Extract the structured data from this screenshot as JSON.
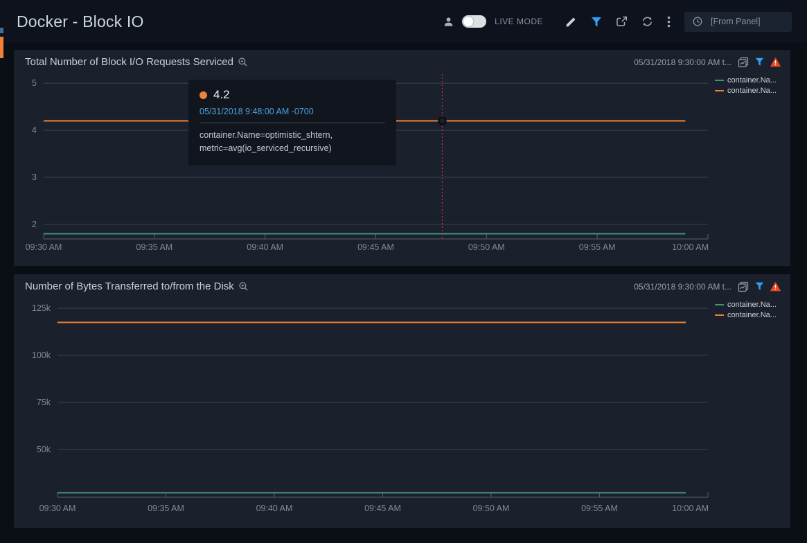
{
  "app": {
    "title": "Docker - Block IO"
  },
  "toolbar": {
    "live_mode_label": "LIVE MODE",
    "live_mode_on": false,
    "time_range_value": "[From Panel]",
    "icons": [
      "user-icon",
      "live-mode-toggle",
      "edit-pencil-icon",
      "filter-funnel-icon",
      "share-icon",
      "refresh-icon",
      "kebab-menu-icon",
      "clock-icon"
    ],
    "filter_icon_color": "#2fa1f6"
  },
  "panels": [
    {
      "title": "Total Number of Block I/O Requests Serviced",
      "time_label": "05/31/2018 9:30:00 AM t...",
      "header_icons": [
        "zoom-in-icon",
        "copy-panel-icon",
        "panel-filter-icon",
        "panel-warning-icon"
      ],
      "warning_color": "#e8491f",
      "tooltip": {
        "value": "4.2",
        "timestamp": "05/31/2018 9:48:00 AM -0700",
        "details": [
          "container.Name=optimistic_shtern,",
          "metric=avg(io_serviced_recursive)"
        ],
        "dot_color": "#f08138"
      }
    },
    {
      "title": "Number of Bytes Transferred to/from the Disk",
      "time_label": "05/31/2018 9:30:00 AM t...",
      "header_icons": [
        "zoom-in-icon",
        "copy-panel-icon",
        "panel-filter-icon",
        "panel-warning-icon"
      ],
      "warning_color": "#e8491f"
    }
  ],
  "chart_data": [
    {
      "type": "line",
      "title": "Total Number of Block I/O Requests Serviced",
      "xlabel": "",
      "ylabel": "",
      "x_ticks": [
        "09:30 AM",
        "09:35 AM",
        "09:40 AM",
        "09:45 AM",
        "09:50 AM",
        "09:55 AM",
        "10:00 AM"
      ],
      "y_ticks": [
        {
          "value": 5,
          "label": "5"
        },
        {
          "value": 4,
          "label": "4"
        },
        {
          "value": 3,
          "label": "3"
        },
        {
          "value": 2,
          "label": "2"
        }
      ],
      "ylim": [
        1.69,
        5.12
      ],
      "grid": true,
      "legend_position": "top-right",
      "series": [
        {
          "name": "container.Name (teal series)",
          "legend_label": "container.Na...",
          "color": "#3f9579",
          "shape": "flat",
          "value": 1.8,
          "end_frac": 0.966
        },
        {
          "name": "container.Name=optimistic_shtern, metric=avg(io_serviced_recursive)",
          "legend_label": "container.Na...",
          "color": "#f08138",
          "shape": "flat",
          "value": 4.2,
          "end_frac": 0.966
        }
      ],
      "hover": {
        "series_name": "container.Name=optimistic_shtern",
        "value": 4.2,
        "time": "05/31/2018 9:48:00 AM -0700",
        "x_frac": 0.6,
        "crosshair_color": "#d9402c"
      }
    },
    {
      "type": "line",
      "title": "Number of Bytes Transferred to/from the Disk",
      "xlabel": "",
      "ylabel": "",
      "x_ticks": [
        "09:30 AM",
        "09:35 AM",
        "09:40 AM",
        "09:45 AM",
        "09:50 AM",
        "09:55 AM",
        "10:00 AM"
      ],
      "y_ticks": [
        {
          "value": 125000,
          "label": "125k"
        },
        {
          "value": 100000,
          "label": "100k"
        },
        {
          "value": 75000,
          "label": "75k"
        },
        {
          "value": 50000,
          "label": "50k"
        }
      ],
      "ylim": [
        24600,
        127600
      ],
      "grid": true,
      "legend_position": "top-right",
      "series": [
        {
          "name": "container.Name (teal series)",
          "legend_label": "container.Na...",
          "color": "#3f9579",
          "shape": "flat",
          "value": 27000,
          "end_frac": 0.966
        },
        {
          "name": "container.Name (orange series)",
          "legend_label": "container.Na...",
          "color": "#f08138",
          "shape": "flat",
          "value": 117500,
          "end_frac": 0.966
        }
      ]
    }
  ]
}
